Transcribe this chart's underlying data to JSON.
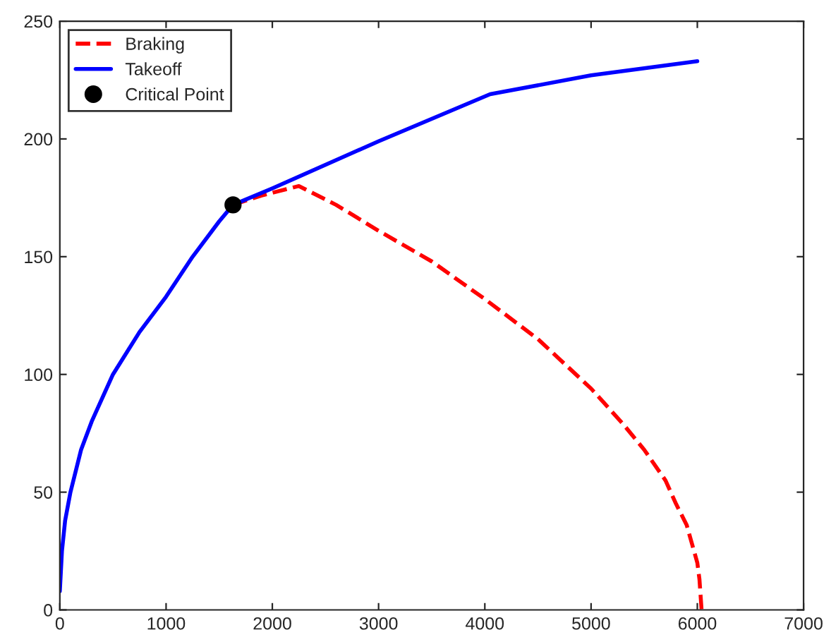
{
  "chart_data": {
    "type": "line",
    "xlim": [
      0,
      7000
    ],
    "ylim": [
      0,
      250
    ],
    "xticks": [
      0,
      1000,
      2000,
      3000,
      4000,
      5000,
      6000,
      7000
    ],
    "yticks": [
      0,
      50,
      100,
      150,
      200,
      250
    ],
    "grid": false,
    "legend": "top left",
    "series": [
      {
        "name": "Braking",
        "color": "#ff0000",
        "line_style": "dashed",
        "marker": "none",
        "x": [
          1630,
          1900,
          2250,
          2600,
          3000,
          3500,
          4000,
          4500,
          5000,
          5300,
          5500,
          5700,
          5800,
          5900,
          5950,
          6000,
          6020,
          6040
        ],
        "values": [
          172,
          176,
          180,
          172,
          161,
          148,
          132,
          115,
          94,
          79,
          68,
          55,
          45,
          36,
          28,
          20,
          13,
          0
        ]
      },
      {
        "name": "Takeoff",
        "color": "#0000ff",
        "line_style": "solid",
        "marker": "none",
        "x": [
          0,
          20,
          50,
          100,
          200,
          300,
          500,
          750,
          1000,
          1250,
          1500,
          1630,
          2000,
          3000,
          4050,
          5000,
          6000
        ],
        "values": [
          8,
          25,
          38,
          50,
          68,
          80,
          100,
          118,
          133,
          150,
          165,
          172,
          179,
          199,
          219,
          227,
          233
        ]
      },
      {
        "name": "Critical Point",
        "type": "scatter",
        "color": "#000000",
        "marker": "circle",
        "x": [
          1630
        ],
        "values": [
          172
        ]
      }
    ]
  }
}
